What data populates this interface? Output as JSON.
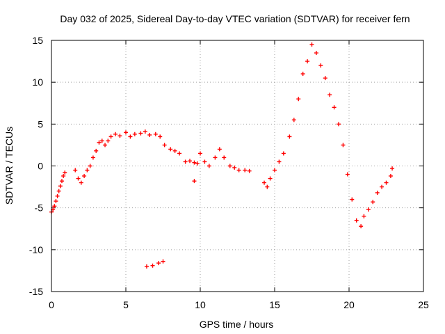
{
  "chart_data": {
    "type": "scatter",
    "title": "Day 032 of 2025, Sidereal Day-to-day VTEC variation (SDTVAR) for receiver fern",
    "xlabel": "GPS time / hours",
    "ylabel": "SDTVAR / TECUs",
    "xlim": [
      0,
      25
    ],
    "ylim": [
      -15,
      15
    ],
    "xticks": [
      "0",
      "5",
      "10",
      "15",
      "20",
      "25"
    ],
    "yticks": [
      "-15",
      "-10",
      "-5",
      "0",
      "5",
      "10",
      "15"
    ],
    "grid": true,
    "marker": "plus",
    "color": "#ff0000",
    "series": [
      {
        "name": "SDTVAR",
        "x": [
          0.0,
          0.1,
          0.2,
          0.3,
          0.4,
          0.5,
          0.6,
          0.7,
          0.8,
          0.9,
          1.6,
          1.8,
          2.0,
          2.2,
          2.4,
          2.6,
          2.8,
          3.0,
          3.2,
          3.4,
          3.6,
          3.8,
          4.0,
          4.3,
          4.6,
          5.0,
          5.3,
          5.6,
          6.0,
          6.3,
          6.6,
          7.0,
          7.3,
          7.6,
          8.0,
          8.3,
          8.6,
          9.0,
          9.3,
          9.6,
          9.8,
          10.0,
          10.3,
          10.6,
          11.0,
          11.3,
          11.6,
          12.0,
          12.3,
          12.6,
          13.0,
          13.3,
          14.3,
          14.5,
          14.7,
          15.0,
          15.3,
          15.6,
          16.0,
          16.3,
          16.6,
          16.9,
          17.2,
          17.5,
          17.8,
          18.1,
          18.4,
          18.7,
          19.0,
          19.3,
          19.6,
          19.9,
          20.2,
          20.5,
          20.8,
          21.0,
          21.3,
          21.6,
          21.9,
          22.2,
          22.5,
          22.8,
          22.9,
          9.6,
          6.4,
          6.8,
          7.2,
          7.5
        ],
        "y": [
          -5.5,
          -5.2,
          -4.8,
          -4.2,
          -3.6,
          -3.0,
          -2.4,
          -1.8,
          -1.2,
          -0.8,
          -0.5,
          -1.5,
          -2.0,
          -1.2,
          -0.5,
          0.0,
          1.0,
          1.8,
          2.8,
          3.0,
          2.5,
          3.0,
          3.5,
          3.8,
          3.6,
          4.0,
          3.5,
          3.8,
          3.9,
          4.1,
          3.7,
          3.8,
          3.5,
          2.5,
          2.0,
          1.8,
          1.5,
          0.5,
          0.6,
          0.4,
          0.3,
          1.5,
          0.5,
          0.0,
          1.0,
          2.0,
          1.0,
          0.0,
          -0.2,
          -0.5,
          -0.5,
          -0.6,
          -2.0,
          -2.5,
          -1.5,
          -0.5,
          0.5,
          1.5,
          3.5,
          5.5,
          8.0,
          11.0,
          12.5,
          14.5,
          13.5,
          12.0,
          10.5,
          8.5,
          7.0,
          5.0,
          2.5,
          -1.0,
          -4.0,
          -6.5,
          -7.2,
          -6.0,
          -5.2,
          -4.3,
          -3.2,
          -2.5,
          -2.0,
          -1.2,
          -0.3,
          -1.8,
          -12.0,
          -11.9,
          -11.6,
          -11.4
        ]
      }
    ]
  }
}
